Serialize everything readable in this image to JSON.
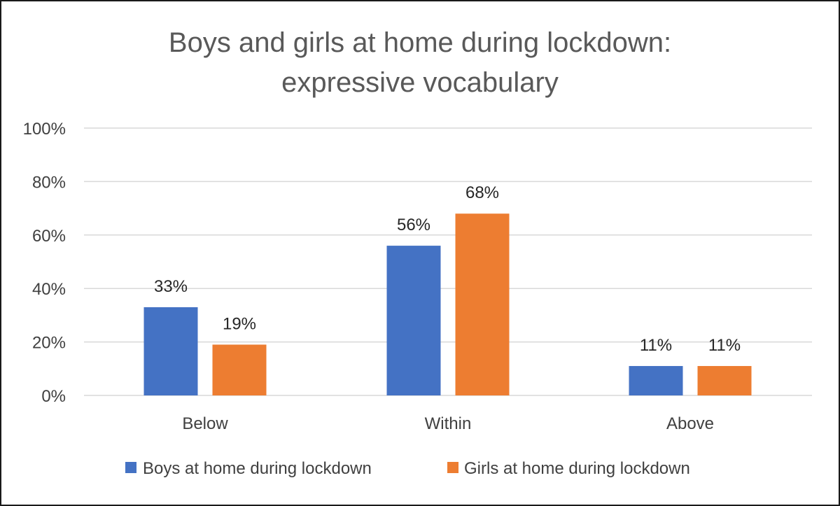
{
  "chart_data": {
    "type": "bar",
    "title": "Boys and girls at home during lockdown: expressive vocabulary",
    "title_lines": [
      "Boys and girls at home during lockdown:",
      "expressive vocabulary"
    ],
    "categories": [
      "Below",
      "Within",
      "Above"
    ],
    "series": [
      {
        "name": "Boys at home during lockdown",
        "color": "#4472C4",
        "values": [
          33,
          56,
          11
        ]
      },
      {
        "name": "Girls at home during lockdown",
        "color": "#ED7D31",
        "values": [
          19,
          68,
          11
        ]
      }
    ],
    "value_unit": "%",
    "ylim": [
      0,
      100
    ],
    "yticks": [
      0,
      20,
      40,
      60,
      80,
      100
    ],
    "ytick_labels": [
      "0%",
      "20%",
      "40%",
      "60%",
      "80%",
      "100%"
    ],
    "grid": true,
    "legend_position": "bottom",
    "data_labels": true
  }
}
